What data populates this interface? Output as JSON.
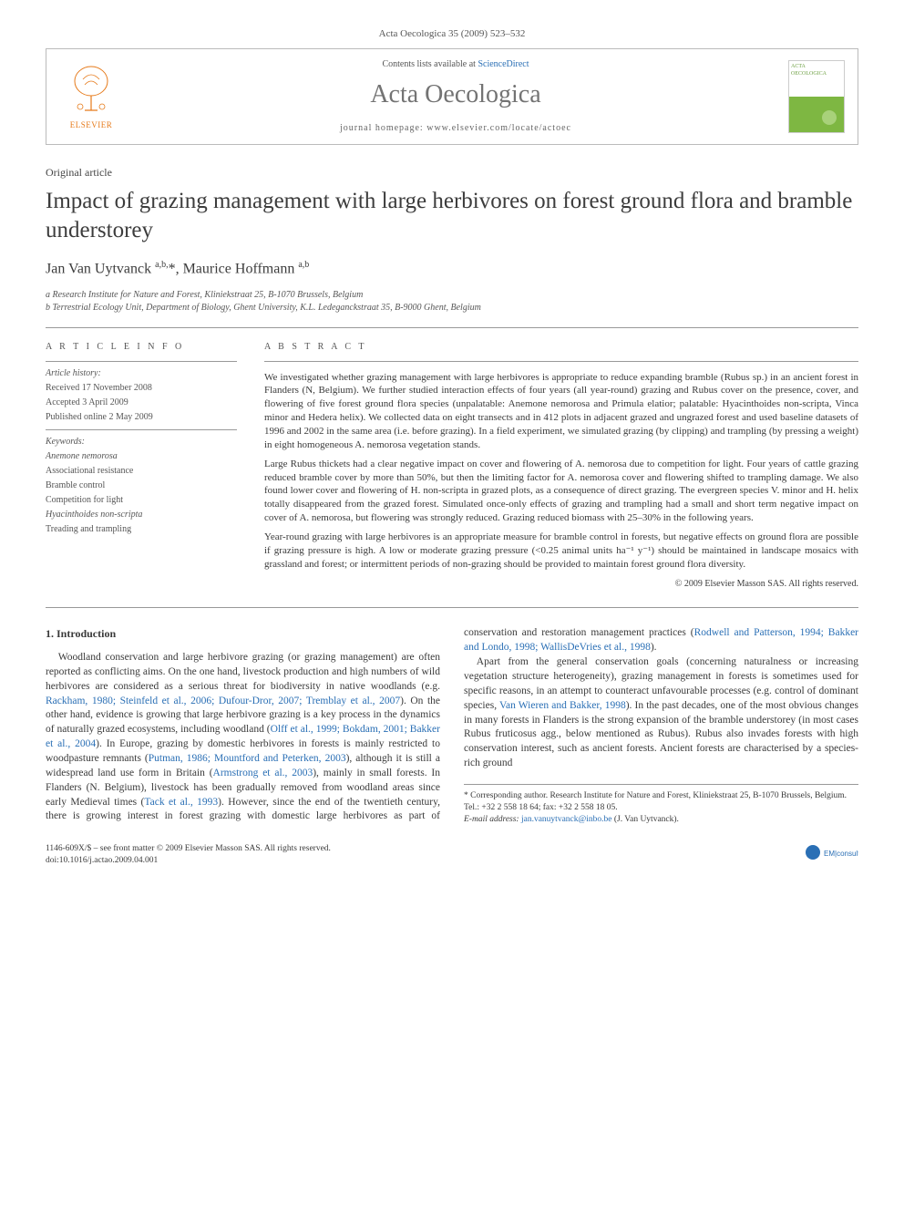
{
  "header": {
    "citation": "Acta Oecologica 35 (2009) 523–532"
  },
  "topbox": {
    "contents_prefix": "Contents lists available at ",
    "contents_link": "ScienceDirect",
    "journal": "Acta Oecologica",
    "homepage_prefix": "journal homepage: ",
    "homepage_url": "www.elsevier.com/locate/actoec",
    "elsevier": "ELSEVIER",
    "thumb_text": "ACTA OECOLOGICA"
  },
  "article": {
    "type": "Original article",
    "title": "Impact of grazing management with large herbivores on forest ground flora and bramble understorey",
    "authors_html": "Jan Van Uytvanck <sup>a,b,</sup>*, Maurice Hoffmann <sup>a,b</sup>",
    "aff_a": "a Research Institute for Nature and Forest, Kliniekstraat 25, B-1070 Brussels, Belgium",
    "aff_b": "b Terrestrial Ecology Unit, Department of Biology, Ghent University, K.L. Ledeganckstraat 35, B-9000 Ghent, Belgium"
  },
  "info": {
    "heading": "A R T I C L E   I N F O",
    "history_label": "Article history:",
    "received": "Received 17 November 2008",
    "accepted": "Accepted 3 April 2009",
    "published": "Published online 2 May 2009",
    "keywords_label": "Keywords:",
    "kw1": "Anemone nemorosa",
    "kw2": "Associational resistance",
    "kw3": "Bramble control",
    "kw4": "Competition for light",
    "kw5": "Hyacinthoides non-scripta",
    "kw6": "Treading and trampling"
  },
  "abstract": {
    "heading": "A B S T R A C T",
    "p1": "We investigated whether grazing management with large herbivores is appropriate to reduce expanding bramble (Rubus sp.) in an ancient forest in Flanders (N, Belgium). We further studied interaction effects of four years (all year-round) grazing and Rubus cover on the presence, cover, and flowering of five forest ground flora species (unpalatable: Anemone nemorosa and Primula elatior; palatable: Hyacinthoides non-scripta, Vinca minor and Hedera helix). We collected data on eight transects and in 412 plots in adjacent grazed and ungrazed forest and used baseline datasets of 1996 and 2002 in the same area (i.e. before grazing). In a field experiment, we simulated grazing (by clipping) and trampling (by pressing a weight) in eight homogeneous A. nemorosa vegetation stands.",
    "p2": "Large Rubus thickets had a clear negative impact on cover and flowering of A. nemorosa due to competition for light. Four years of cattle grazing reduced bramble cover by more than 50%, but then the limiting factor for A. nemorosa cover and flowering shifted to trampling damage. We also found lower cover and flowering of H. non-scripta in grazed plots, as a consequence of direct grazing. The evergreen species V. minor and H. helix totally disappeared from the grazed forest. Simulated once-only effects of grazing and trampling had a small and short term negative impact on cover of A. nemorosa, but flowering was strongly reduced. Grazing reduced biomass with 25–30% in the following years.",
    "p3": "Year-round grazing with large herbivores is an appropriate measure for bramble control in forests, but negative effects on ground flora are possible if grazing pressure is high. A low or moderate grazing pressure (<0.25 animal units ha⁻¹ y⁻¹) should be maintained in landscape mosaics with grassland and forest; or intermittent periods of non-grazing should be provided to maintain forest ground flora diversity.",
    "copyright": "© 2009 Elsevier Masson SAS. All rights reserved."
  },
  "body": {
    "section_heading": "1. Introduction",
    "p1a": "Woodland conservation and large herbivore grazing (or grazing management) are often reported as conflicting aims. On the one hand, livestock production and high numbers of wild herbivores are considered as a serious threat for biodiversity in native woodlands (e.g. ",
    "cite1": "Rackham, 1980; Steinfeld et al., 2006; Dufour-Dror, 2007; Tremblay et al., 2007",
    "p1b": "). On the other hand, evidence is growing that large herbivore grazing is a key process in the dynamics of naturally grazed ecosystems, including woodland (",
    "cite2": "Olff et al., 1999; Bokdam, 2001; Bakker et al., 2004",
    "p1c": "). In Europe, grazing by domestic herbivores in forests is mainly restricted to woodpasture remnants (",
    "cite3": "Putman, 1986; Mountford and Peterken, 2003",
    "p1d": "), although it is still a widespread land use form in Britain (",
    "cite4": "Armstrong et al., 2003",
    "p1e": "), mainly in small forests. In Flanders (N. Belgium), livestock has been gradually removed from woodland areas since early Medieval times (",
    "cite5": "Tack et al., 1993",
    "p1f": "). However, since the end of the twentieth century, there is growing interest in forest grazing with domestic large herbivores as part of conservation and restoration management practices (",
    "cite6": "Rodwell and Patterson, 1994; Bakker and Londo, 1998; WallisDeVries et al., 1998",
    "p1g": ").",
    "p2a": "Apart from the general conservation goals (concerning naturalness or increasing vegetation structure heterogeneity), grazing management in forests is sometimes used for specific reasons, in an attempt to counteract unfavourable processes (e.g. control of dominant species, ",
    "cite7": "Van Wieren and Bakker, 1998",
    "p2b": "). In the past decades, one of the most obvious changes in many forests in Flanders is the strong expansion of the bramble understorey (in most cases Rubus fruticosus agg., below mentioned as Rubus). Rubus also invades forests with high conservation interest, such as ancient forests. Ancient forests are characterised by a species-rich ground"
  },
  "footnote": {
    "corr": "* Corresponding author. Research Institute for Nature and Forest, Kliniekstraat 25, B-1070 Brussels, Belgium. Tel.: +32 2 558 18 64; fax: +32 2 558 18 05.",
    "email_label": "E-mail address: ",
    "email": "jan.vanuytvanck@inbo.be",
    "email_suffix": " (J. Van Uytvanck)."
  },
  "footer": {
    "issn": "1146-609X/$ – see front matter © 2009 Elsevier Masson SAS. All rights reserved.",
    "doi": "doi:10.1016/j.actao.2009.04.001"
  },
  "colors": {
    "link": "#2a6fb5",
    "elsevier_orange": "#e67a1a",
    "thumb_green": "#7eb742",
    "text": "#3a3a3a",
    "rule": "#999999"
  }
}
